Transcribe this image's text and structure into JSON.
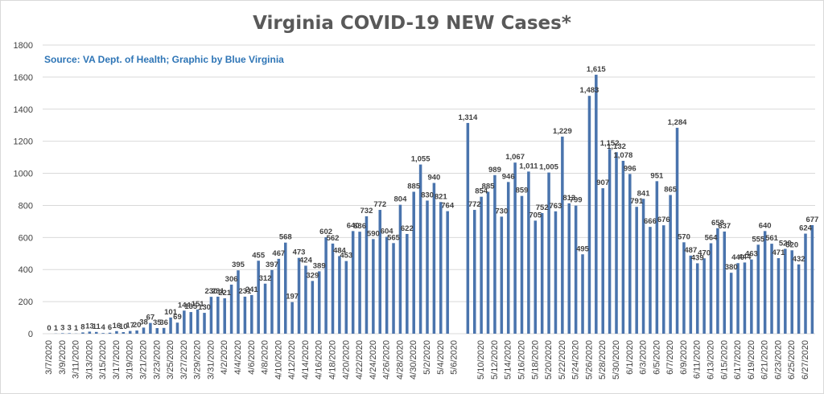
{
  "chart_data": {
    "type": "bar",
    "title": "Virginia COVID-19 NEW Cases*",
    "subtitle": "Source: VA Dept. of Health; Graphic by Blue Virginia",
    "xlabel": "",
    "ylabel": "",
    "ylim": [
      0,
      1800
    ],
    "yticks": [
      0,
      200,
      400,
      600,
      800,
      1000,
      1200,
      1400,
      1600,
      1800
    ],
    "grid": true,
    "bar_color": "#4a74ad",
    "x_start": "2020-03-07",
    "x_end": "2020-06-27",
    "xtick_labels": [
      "3/7/2020",
      "3/9/2020",
      "3/11/2020",
      "3/13/2020",
      "3/15/2020",
      "3/17/2020",
      "3/19/2020",
      "3/21/2020",
      "3/23/2020",
      "3/25/2020",
      "3/27/2020",
      "3/29/2020",
      "3/31/2020",
      "4/2/2020",
      "4/4/2020",
      "4/6/2020",
      "4/8/2020",
      "4/10/2020",
      "4/12/2020",
      "4/14/2020",
      "4/16/2020",
      "4/18/2020",
      "4/20/2020",
      "4/22/2020",
      "4/24/2020",
      "4/26/2020",
      "4/28/2020",
      "4/30/2020",
      "5/2/2020",
      "5/4/2020",
      "5/6/2020",
      "5/10/2020",
      "5/12/2020",
      "5/14/2020",
      "5/16/2020",
      "5/18/2020",
      "5/20/2020",
      "5/22/2020",
      "5/24/2020",
      "5/26/2020",
      "5/28/2020",
      "5/30/2020",
      "6/1/2020",
      "6/3/2020",
      "6/5/2020",
      "6/7/2020",
      "6/9/2020",
      "6/11/2020",
      "6/13/2020",
      "6/15/2020",
      "6/17/2020",
      "6/19/2020",
      "6/21/2020",
      "6/23/2020",
      "6/25/2020",
      "6/27/2020"
    ],
    "points": [
      {
        "x": "2020-03-07",
        "y": 0,
        "label": "0"
      },
      {
        "x": "2020-03-08",
        "y": 1,
        "label": "1"
      },
      {
        "x": "2020-03-09",
        "y": 3,
        "label": "3"
      },
      {
        "x": "2020-03-10",
        "y": 3,
        "label": "3"
      },
      {
        "x": "2020-03-11",
        "y": 1,
        "label": "1"
      },
      {
        "x": "2020-03-12",
        "y": 8,
        "label": "8"
      },
      {
        "x": "2020-03-13",
        "y": 13,
        "label": "13"
      },
      {
        "x": "2020-03-14",
        "y": 11,
        "label": "11"
      },
      {
        "x": "2020-03-15",
        "y": 4,
        "label": "4"
      },
      {
        "x": "2020-03-16",
        "y": 6,
        "label": "6"
      },
      {
        "x": "2020-03-17",
        "y": 16,
        "label": "16"
      },
      {
        "x": "2020-03-18",
        "y": 10,
        "label": "10"
      },
      {
        "x": "2020-03-19",
        "y": 17,
        "label": "17"
      },
      {
        "x": "2020-03-20",
        "y": 20,
        "label": "20"
      },
      {
        "x": "2020-03-21",
        "y": 38,
        "label": "38"
      },
      {
        "x": "2020-03-22",
        "y": 67,
        "label": "67"
      },
      {
        "x": "2020-03-23",
        "y": 35,
        "label": "35"
      },
      {
        "x": "2020-03-24",
        "y": 36,
        "label": "36"
      },
      {
        "x": "2020-03-25",
        "y": 101,
        "label": "101"
      },
      {
        "x": "2020-03-26",
        "y": 69,
        "label": "69"
      },
      {
        "x": "2020-03-27",
        "y": 144,
        "label": "144"
      },
      {
        "x": "2020-03-28",
        "y": 135,
        "label": "135"
      },
      {
        "x": "2020-03-29",
        "y": 151,
        "label": "151"
      },
      {
        "x": "2020-03-30",
        "y": 130,
        "label": "130"
      },
      {
        "x": "2020-03-31",
        "y": 230,
        "label": "230"
      },
      {
        "x": "2020-04-01",
        "y": 231,
        "label": "231"
      },
      {
        "x": "2020-04-02",
        "y": 221,
        "label": "221"
      },
      {
        "x": "2020-04-03",
        "y": 306,
        "label": "306"
      },
      {
        "x": "2020-04-04",
        "y": 395,
        "label": "395"
      },
      {
        "x": "2020-04-05",
        "y": 231,
        "label": "231"
      },
      {
        "x": "2020-04-06",
        "y": 241,
        "label": "241"
      },
      {
        "x": "2020-04-07",
        "y": 455,
        "label": "455"
      },
      {
        "x": "2020-04-08",
        "y": 312,
        "label": "312"
      },
      {
        "x": "2020-04-09",
        "y": 397,
        "label": "397"
      },
      {
        "x": "2020-04-10",
        "y": 467,
        "label": "467"
      },
      {
        "x": "2020-04-11",
        "y": 568,
        "label": "568"
      },
      {
        "x": "2020-04-12",
        "y": 197,
        "label": "197"
      },
      {
        "x": "2020-04-13",
        "y": 473,
        "label": "473"
      },
      {
        "x": "2020-04-14",
        "y": 424,
        "label": "424"
      },
      {
        "x": "2020-04-15",
        "y": 329,
        "label": "329"
      },
      {
        "x": "2020-04-16",
        "y": 389,
        "label": "389"
      },
      {
        "x": "2020-04-17",
        "y": 602,
        "label": "602"
      },
      {
        "x": "2020-04-18",
        "y": 562,
        "label": "562"
      },
      {
        "x": "2020-04-19",
        "y": 484,
        "label": "484"
      },
      {
        "x": "2020-04-20",
        "y": 453,
        "label": "453"
      },
      {
        "x": "2020-04-21",
        "y": 640,
        "label": "640"
      },
      {
        "x": "2020-04-22",
        "y": 636,
        "label": "636"
      },
      {
        "x": "2020-04-23",
        "y": 732,
        "label": "732"
      },
      {
        "x": "2020-04-24",
        "y": 590,
        "label": "590"
      },
      {
        "x": "2020-04-25",
        "y": 772,
        "label": "772"
      },
      {
        "x": "2020-04-26",
        "y": 604,
        "label": "604"
      },
      {
        "x": "2020-04-27",
        "y": 565,
        "label": "565"
      },
      {
        "x": "2020-04-28",
        "y": 804,
        "label": "804"
      },
      {
        "x": "2020-04-29",
        "y": 622,
        "label": "622"
      },
      {
        "x": "2020-04-30",
        "y": 885,
        "label": "885"
      },
      {
        "x": "2020-05-01",
        "y": 1055,
        "label": "1,055"
      },
      {
        "x": "2020-05-02",
        "y": 830,
        "label": "830"
      },
      {
        "x": "2020-05-03",
        "y": 940,
        "label": "940"
      },
      {
        "x": "2020-05-04",
        "y": 821,
        "label": "821"
      },
      {
        "x": "2020-05-05",
        "y": 764,
        "label": "764"
      },
      {
        "x": "2020-05-08",
        "y": 1314,
        "label": "1,314"
      },
      {
        "x": "2020-05-09",
        "y": 772,
        "label": "772"
      },
      {
        "x": "2020-05-10",
        "y": 854,
        "label": "854"
      },
      {
        "x": "2020-05-11",
        "y": 885,
        "label": "885"
      },
      {
        "x": "2020-05-12",
        "y": 989,
        "label": "989"
      },
      {
        "x": "2020-05-13",
        "y": 730,
        "label": "730"
      },
      {
        "x": "2020-05-14",
        "y": 946,
        "label": "946"
      },
      {
        "x": "2020-05-15",
        "y": 1067,
        "label": "1,067"
      },
      {
        "x": "2020-05-16",
        "y": 859,
        "label": "859"
      },
      {
        "x": "2020-05-17",
        "y": 1011,
        "label": "1,011"
      },
      {
        "x": "2020-05-18",
        "y": 705,
        "label": "705"
      },
      {
        "x": "2020-05-19",
        "y": 752,
        "label": "752"
      },
      {
        "x": "2020-05-20",
        "y": 1005,
        "label": "1,005"
      },
      {
        "x": "2020-05-21",
        "y": 763,
        "label": "763"
      },
      {
        "x": "2020-05-22",
        "y": 1229,
        "label": "1,229"
      },
      {
        "x": "2020-05-23",
        "y": 813,
        "label": "813"
      },
      {
        "x": "2020-05-24",
        "y": 799,
        "label": "799"
      },
      {
        "x": "2020-05-25",
        "y": 495,
        "label": "495"
      },
      {
        "x": "2020-05-26",
        "y": 1483,
        "label": "1,483"
      },
      {
        "x": "2020-05-27",
        "y": 1615,
        "label": "1,615"
      },
      {
        "x": "2020-05-28",
        "y": 907,
        "label": "907"
      },
      {
        "x": "2020-05-29",
        "y": 1152,
        "label": "1,152"
      },
      {
        "x": "2020-05-30",
        "y": 1132,
        "label": "1,132"
      },
      {
        "x": "2020-05-31",
        "y": 1078,
        "label": "1,078"
      },
      {
        "x": "2020-06-01",
        "y": 996,
        "label": "996"
      },
      {
        "x": "2020-06-02",
        "y": 791,
        "label": "791"
      },
      {
        "x": "2020-06-03",
        "y": 841,
        "label": "841"
      },
      {
        "x": "2020-06-04",
        "y": 666,
        "label": "666"
      },
      {
        "x": "2020-06-05",
        "y": 951,
        "label": "951"
      },
      {
        "x": "2020-06-06",
        "y": 676,
        "label": "676"
      },
      {
        "x": "2020-06-07",
        "y": 865,
        "label": "865"
      },
      {
        "x": "2020-06-08",
        "y": 1284,
        "label": "1,284"
      },
      {
        "x": "2020-06-09",
        "y": 570,
        "label": "570"
      },
      {
        "x": "2020-06-10",
        "y": 487,
        "label": "487"
      },
      {
        "x": "2020-06-11",
        "y": 439,
        "label": "439"
      },
      {
        "x": "2020-06-12",
        "y": 470,
        "label": "470"
      },
      {
        "x": "2020-06-13",
        "y": 564,
        "label": "564"
      },
      {
        "x": "2020-06-14",
        "y": 658,
        "label": "658"
      },
      {
        "x": "2020-06-15",
        "y": 637,
        "label": "637"
      },
      {
        "x": "2020-06-16",
        "y": 380,
        "label": "380"
      },
      {
        "x": "2020-06-17",
        "y": 440,
        "label": "440"
      },
      {
        "x": "2020-06-18",
        "y": 444,
        "label": "444"
      },
      {
        "x": "2020-06-19",
        "y": 463,
        "label": "463"
      },
      {
        "x": "2020-06-20",
        "y": 555,
        "label": "555"
      },
      {
        "x": "2020-06-21",
        "y": 640,
        "label": "640"
      },
      {
        "x": "2020-06-22",
        "y": 561,
        "label": "561"
      },
      {
        "x": "2020-06-23",
        "y": 471,
        "label": "471"
      },
      {
        "x": "2020-06-24",
        "y": 529,
        "label": "529"
      },
      {
        "x": "2020-06-25",
        "y": 520,
        "label": "520"
      },
      {
        "x": "2020-06-26",
        "y": 432,
        "label": "432"
      },
      {
        "x": "2020-06-27",
        "y": 624,
        "label": "624"
      },
      {
        "x": "2020-06-28",
        "y": 677,
        "label": "677"
      }
    ]
  }
}
